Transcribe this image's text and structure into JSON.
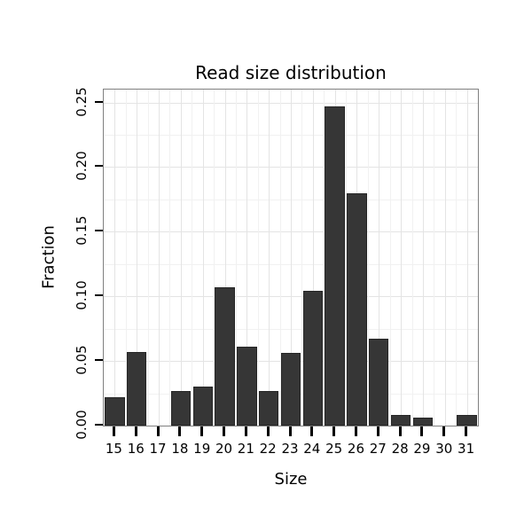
{
  "chart_data": {
    "type": "bar",
    "title": "Read size distribution",
    "xlabel": "Size",
    "ylabel": "Fraction",
    "categories": [
      "15",
      "16",
      "17",
      "18",
      "19",
      "20",
      "21",
      "22",
      "23",
      "24",
      "25",
      "26",
      "27",
      "28",
      "29",
      "30",
      "31"
    ],
    "values": [
      0.022,
      0.057,
      0.0,
      0.027,
      0.03,
      0.107,
      0.061,
      0.027,
      0.056,
      0.104,
      0.247,
      0.18,
      0.067,
      0.008,
      0.006,
      0.0,
      0.008
    ],
    "ylim": [
      0,
      0.26
    ],
    "yticks": [
      0.0,
      0.05,
      0.1,
      0.15,
      0.2,
      0.25
    ],
    "ytick_labels": [
      "0.00",
      "0.05",
      "0.10",
      "0.15",
      "0.20",
      "0.25"
    ],
    "grid": true,
    "legend": "none",
    "colors": {
      "bar": "#363636",
      "bar_border": "#262626",
      "grid_major": "#e4e4e4",
      "grid_minor": "#f1f1f1",
      "panel_border": "#808080",
      "text": "#000000",
      "background": "#ffffff"
    }
  }
}
